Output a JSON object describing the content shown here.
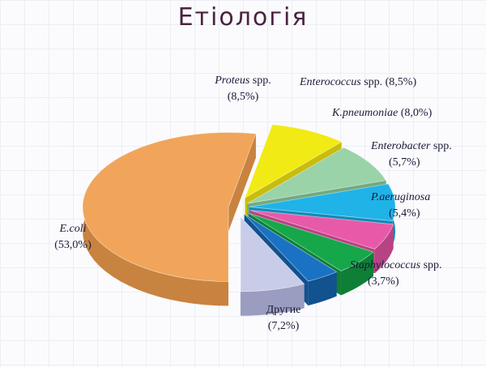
{
  "page": {
    "title": "Етіологія"
  },
  "chart_data": {
    "type": "pie",
    "title": "",
    "style": "3d-exploded",
    "legend": "none",
    "slices": [
      {
        "name": "E.coli",
        "name_italic": true,
        "suffix": "",
        "value": 53.0,
        "value_label": "(53,0%)",
        "color": "#f0a55a",
        "side_color": "#c98340"
      },
      {
        "name": "Proteus",
        "name_italic": true,
        "suffix": " spp.",
        "value": 8.5,
        "value_label": "(8,5%)",
        "color": "#f2ea14",
        "side_color": "#c8bd0c"
      },
      {
        "name": "Enterococcus",
        "name_italic": true,
        "suffix": " spp. (8,5%)",
        "value": 8.5,
        "value_label": "",
        "color": "#9ad3a8",
        "side_color": "#73a982"
      },
      {
        "name": "K.pneumoniae",
        "name_italic": true,
        "suffix": " (8,0%)",
        "value": 8.0,
        "value_label": "",
        "color": "#1fb3e8",
        "side_color": "#148ab8"
      },
      {
        "name": "Enterobacter",
        "name_italic": true,
        "suffix": " spp.",
        "value": 5.7,
        "value_label": "(5,7%)",
        "color": "#e85aa8",
        "side_color": "#b84383"
      },
      {
        "name": "P.aeruginosa",
        "name_italic": true,
        "suffix": "",
        "value": 5.4,
        "value_label": "(5,4%)",
        "color": "#16a74a",
        "side_color": "#0f7e37"
      },
      {
        "name": "Staphylococcus",
        "name_italic": true,
        "suffix": " spp.",
        "value": 3.7,
        "value_label": "(3,7%)",
        "color": "#1a72c4",
        "side_color": "#11528f"
      },
      {
        "name": "Другие",
        "name_italic": false,
        "suffix": "",
        "value": 7.2,
        "value_label": "(7,2%)",
        "color": "#c9cce8",
        "side_color": "#9a9dc0"
      }
    ]
  }
}
